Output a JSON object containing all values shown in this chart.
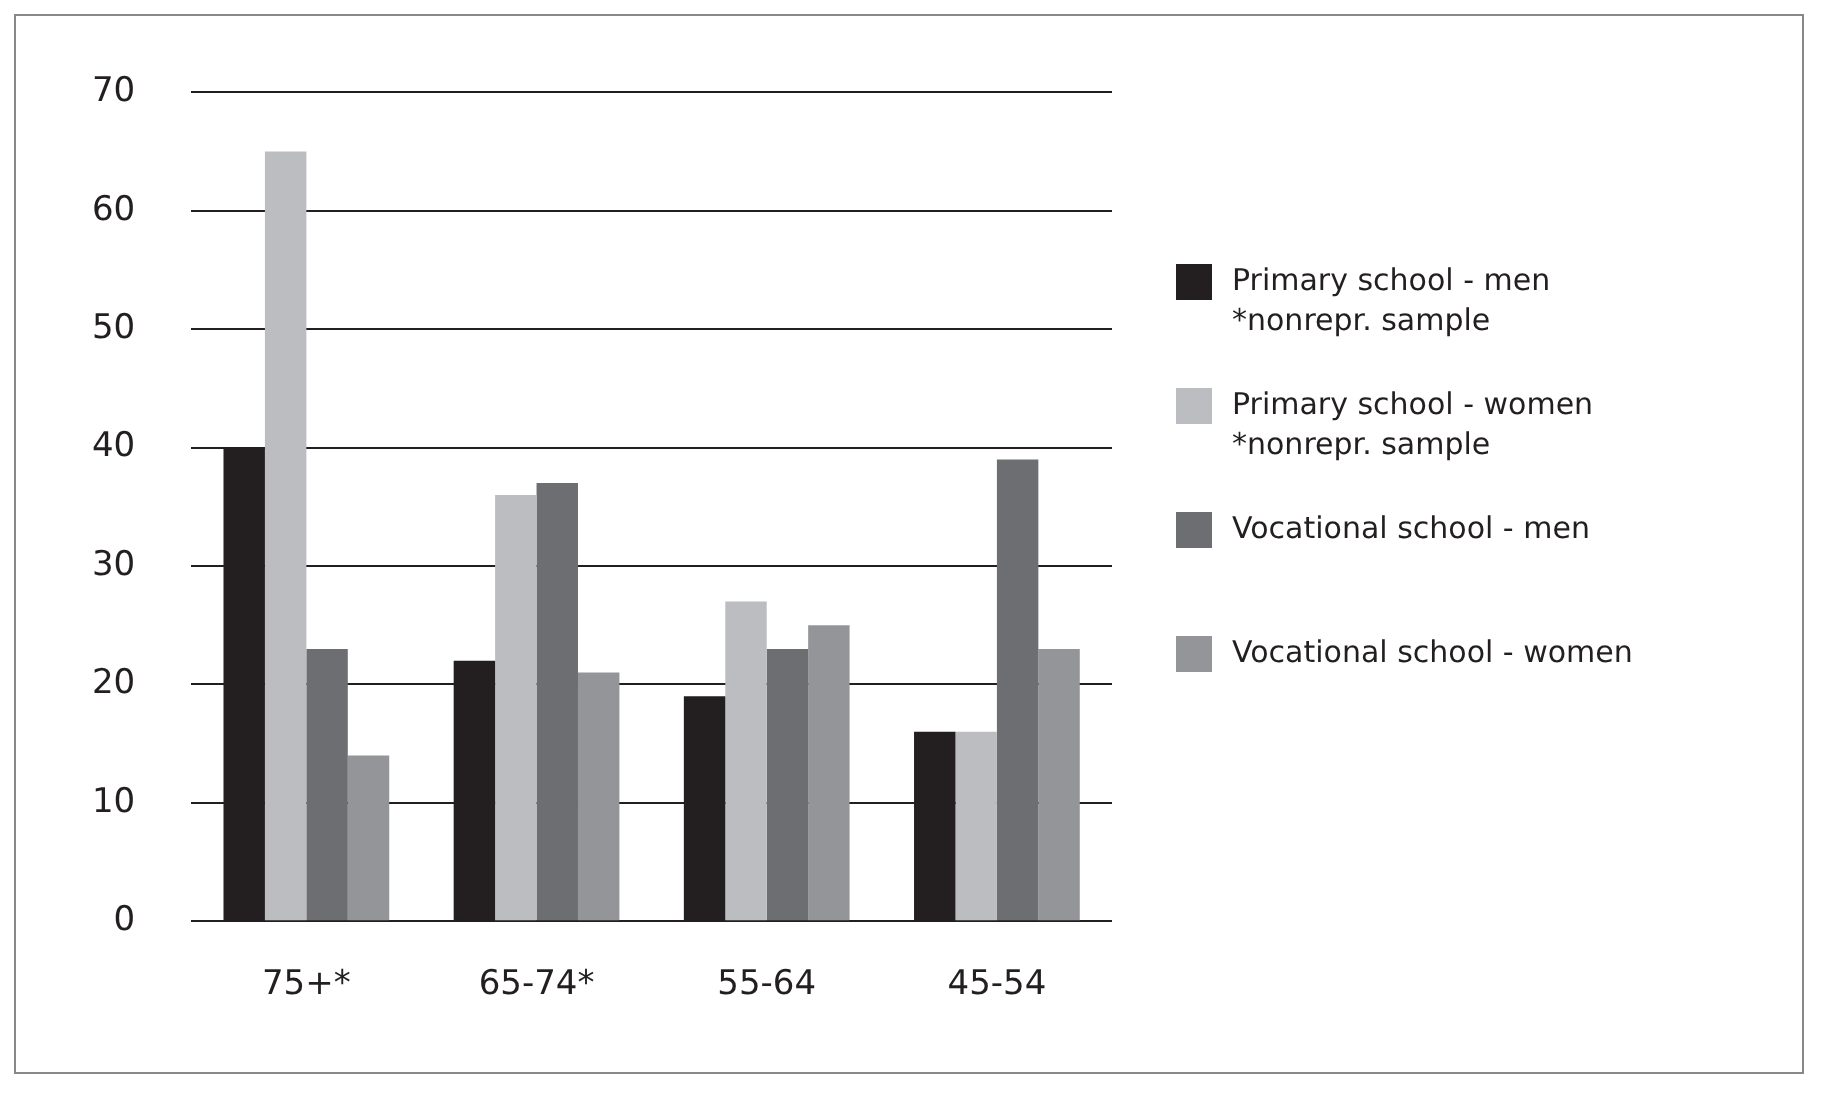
{
  "chart_data": {
    "type": "bar",
    "categories": [
      "75+*",
      "65-74*",
      "55-64",
      "45-54"
    ],
    "series": [
      {
        "name": "Primary school - men\n*nonrepr. sample",
        "color": "#231f20",
        "values": [
          40,
          22,
          19,
          16
        ]
      },
      {
        "name": "Primary school - women\n*nonrepr. sample",
        "color": "#bcbdc0",
        "values": [
          65,
          36,
          27,
          16
        ]
      },
      {
        "name": "Vocational school - men",
        "color": "#6d6e71",
        "values": [
          23,
          37,
          23,
          39
        ]
      },
      {
        "name": "Vocational school - women",
        "color": "#939598",
        "values": [
          14,
          21,
          25,
          23
        ]
      }
    ],
    "ylim": [
      0,
      70
    ],
    "yticks": [
      0,
      10,
      20,
      30,
      40,
      50,
      60,
      70
    ],
    "grid": "y",
    "legend": "right"
  }
}
